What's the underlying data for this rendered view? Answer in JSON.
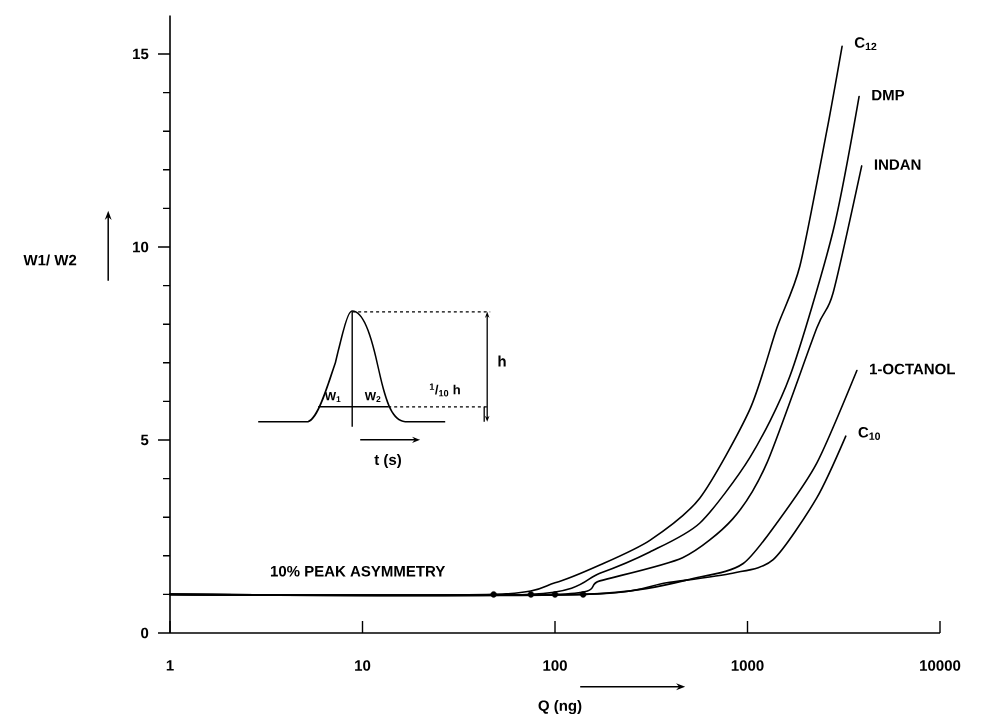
{
  "chart_data": {
    "type": "line",
    "xlabel": "Q (ng)",
    "ylabel": "W1/ W2",
    "log": "x",
    "xlim": [
      1,
      10000
    ],
    "xticks": [
      1,
      10,
      100,
      1000,
      10000
    ],
    "ylim": [
      0,
      16
    ],
    "yticks": [
      0,
      5,
      10,
      15
    ],
    "marker": "none",
    "series": [
      {
        "name": "C$_{12}$",
        "color": "#000000",
        "x": [
          1,
          48,
          100,
          171,
          311,
          566,
          1030,
          1420,
          1870,
          2580,
          3100
        ],
        "values": [
          1.0,
          1.0,
          1.3,
          1.76,
          2.4,
          3.5,
          5.8,
          7.9,
          9.5,
          13.0,
          15.2
        ]
      },
      {
        "name": "DMP",
        "color": "#000000",
        "x": [
          1,
          75,
          171,
          311,
          566,
          1030,
          1660,
          2780,
          3800
        ],
        "values": [
          1.0,
          1.0,
          1.55,
          2.1,
          2.85,
          4.55,
          6.65,
          10.4,
          13.9
        ]
      },
      {
        "name": "INDAN",
        "color": "#000000",
        "x": [
          1,
          100,
          171,
          460,
          836,
          1260,
          2290,
          2780,
          3920
        ],
        "values": [
          1.0,
          1.0,
          1.35,
          1.95,
          2.95,
          4.4,
          7.9,
          8.8,
          12.1
        ]
      },
      {
        "name": "1-OCTANOL",
        "color": "#000000",
        "x": [
          1,
          140,
          566,
          950,
          1420,
          2290,
          3700
        ],
        "values": [
          1.0,
          1.0,
          1.45,
          1.8,
          2.85,
          4.4,
          6.8
        ]
      },
      {
        "name": "C$_{10}$",
        "color": "#000000",
        "x": [
          1,
          140,
          380,
          836,
          1360,
          2290,
          3240
        ],
        "values": [
          1.0,
          1.0,
          1.3,
          1.55,
          1.9,
          3.5,
          5.1
        ]
      },
      {
        "type": "scatter",
        "marker": "circle",
        "color": "#000000",
        "x": [
          48,
          75,
          100,
          140
        ],
        "values": [
          1.0,
          1.0,
          1.0,
          1.0
        ]
      }
    ],
    "annotations": [
      "10% PEAK ASYMMETRY",
      "W$_{1}$",
      "W$_{2}$",
      "$^{1}$/$_{10}$ h",
      "h",
      "t (s)"
    ]
  }
}
